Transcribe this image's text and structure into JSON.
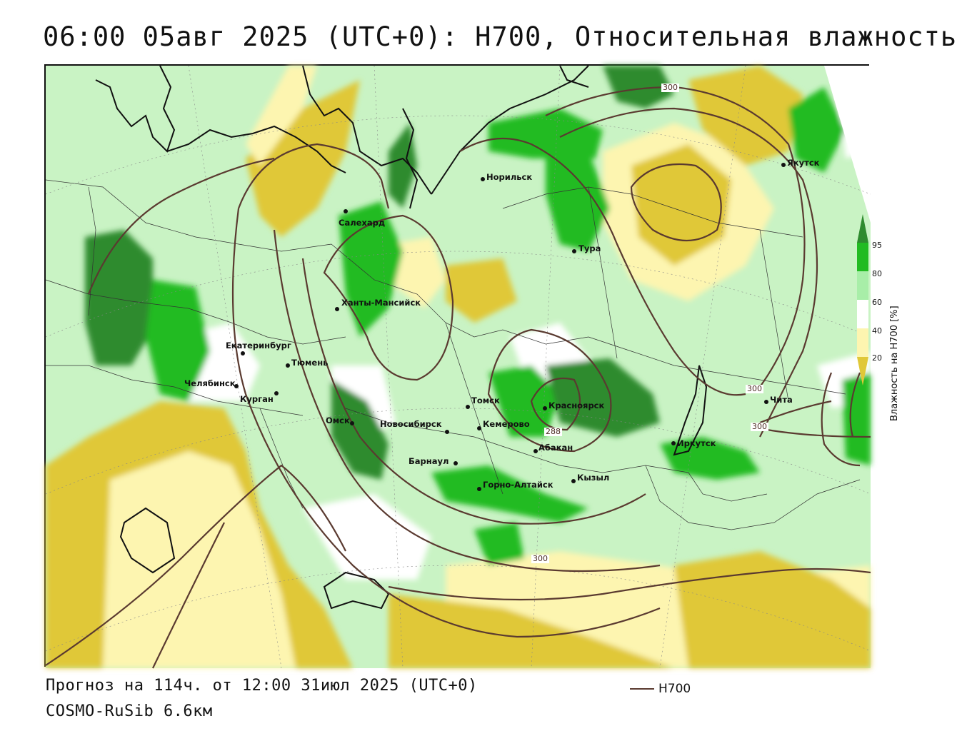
{
  "title": "06:00 05авг 2025 (UTC+0): H700, Относительная влажность",
  "footer": {
    "forecast": "Прогноз на 114ч. от 12:00 31июл 2025 (UTC+0)",
    "model": "COSMO-RuSib 6.6км"
  },
  "legend": {
    "contour_label": "H700",
    "contour_color": "#5a3a30"
  },
  "colorbar": {
    "title": "Влажность на H700 [%]",
    "ticks": [
      "95",
      "80",
      "60",
      "40",
      "20"
    ],
    "colors": {
      "gt95": "#2e8b2e",
      "80_95": "#22bb22",
      "60_80": "#a8eea8",
      "40_60": "#ffffff",
      "20_40": "#fdf5b0",
      "lt20": "#e0c838"
    }
  },
  "map": {
    "cities": [
      {
        "name": "Якутск"
      },
      {
        "name": "Норильск"
      },
      {
        "name": "Салехард"
      },
      {
        "name": "Тура"
      },
      {
        "name": "Ханты-Мансийск"
      },
      {
        "name": "Екатеринбург"
      },
      {
        "name": "Тюмень"
      },
      {
        "name": "Челябинск"
      },
      {
        "name": "Курган"
      },
      {
        "name": "Томск"
      },
      {
        "name": "Омск"
      },
      {
        "name": "Новосибирск"
      },
      {
        "name": "Кемерово"
      },
      {
        "name": "Красноярск"
      },
      {
        "name": "Абакан"
      },
      {
        "name": "Барнаул"
      },
      {
        "name": "Горно-Алтайск"
      },
      {
        "name": "Кызыл"
      },
      {
        "name": "Иркутск"
      },
      {
        "name": "Чита"
      }
    ],
    "contour_labels": [
      "300",
      "300",
      "300",
      "300",
      "288"
    ]
  }
}
